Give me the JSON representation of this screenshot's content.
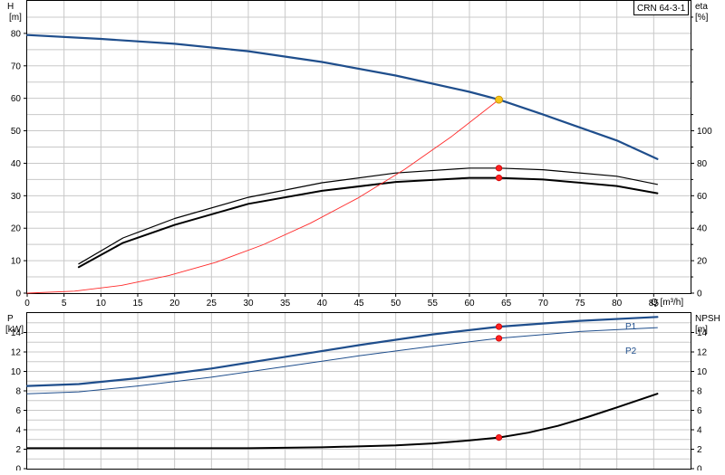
{
  "model_label": "CRN 64-3-1",
  "chart_data": [
    {
      "type": "line",
      "name_role": "head-efficiency",
      "xlabel": "Q [m³/h]",
      "xlim": [
        0,
        90
      ],
      "x_ticks": [
        0,
        5,
        10,
        15,
        20,
        25,
        30,
        35,
        40,
        45,
        50,
        55,
        60,
        65,
        70,
        75,
        80,
        85
      ],
      "y_left": {
        "label_top": "H",
        "label_unit": "[m]",
        "lim": [
          0,
          90
        ],
        "ticks": [
          0,
          10,
          20,
          30,
          40,
          50,
          60,
          70,
          80
        ]
      },
      "y_right": {
        "label_top": "eta",
        "label_unit": "[%]",
        "lim": [
          0,
          180
        ],
        "ticks": [
          0,
          20,
          40,
          60,
          80,
          100
        ]
      },
      "grid": true,
      "series": [
        {
          "role": "head",
          "axis": "left",
          "color": "#1f4e8c",
          "width": 2.2,
          "x": [
            0,
            10,
            20,
            30,
            40,
            50,
            60,
            64,
            70,
            80,
            85.5
          ],
          "y": [
            79.5,
            78.3,
            76.8,
            74.5,
            71.2,
            67.0,
            62.0,
            59.6,
            55.0,
            47.0,
            41.3
          ]
        },
        {
          "role": "eta-upper",
          "axis": "right",
          "color": "#000000",
          "width": 1.2,
          "x": [
            7,
            13,
            20,
            30,
            40,
            50,
            60,
            64,
            70,
            80,
            85.5
          ],
          "y": [
            18,
            34,
            46,
            59,
            68,
            74,
            77,
            77,
            76,
            72,
            67
          ]
        },
        {
          "role": "eta-lower",
          "axis": "right",
          "color": "#000000",
          "width": 2.0,
          "x": [
            7,
            13,
            20,
            30,
            40,
            50,
            60,
            64,
            70,
            80,
            85.5
          ],
          "y": [
            16,
            31,
            42,
            55,
            63,
            68.5,
            71,
            71,
            70,
            66,
            61.5
          ]
        },
        {
          "role": "system-curve",
          "axis": "left",
          "color": "#ff2a2a",
          "width": 0.9,
          "x": [
            0,
            6.4,
            12.8,
            19.2,
            25.6,
            32,
            38.4,
            44.8,
            51.2,
            57.6,
            64
          ],
          "y": [
            0,
            0.6,
            2.4,
            5.4,
            9.5,
            14.9,
            21.5,
            29.2,
            38.1,
            48.3,
            59.6
          ]
        }
      ],
      "markers": [
        {
          "axis": "left",
          "x": 64,
          "y": 59.6,
          "color": "#f5c518",
          "stroke": "#c88a00",
          "r": 4
        },
        {
          "axis": "right",
          "x": 64,
          "y": 77,
          "color": "#ff2020",
          "stroke": "#cc0000",
          "r": 3.2
        },
        {
          "axis": "right",
          "x": 64,
          "y": 71,
          "color": "#ff2020",
          "stroke": "#cc0000",
          "r": 3.2
        }
      ]
    },
    {
      "type": "line",
      "name_role": "power-npsh",
      "xlim": [
        0,
        90
      ],
      "y_left": {
        "label_top": "P",
        "label_unit": "[kW]",
        "lim": [
          0,
          16
        ],
        "ticks": [
          0,
          2,
          4,
          6,
          8,
          10,
          12,
          14
        ]
      },
      "y_right": {
        "label_top": "NPSH",
        "label_unit": "[m]",
        "lim": [
          0,
          16
        ],
        "ticks": [
          0,
          2,
          4,
          6,
          8,
          10,
          12,
          14
        ]
      },
      "grid": true,
      "series": [
        {
          "role": "p1",
          "label": "P1",
          "axis": "left",
          "color": "#1f4e8c",
          "width": 2.2,
          "x": [
            0,
            7,
            15,
            25,
            35,
            45,
            55,
            64,
            75,
            85.5
          ],
          "y": [
            8.5,
            8.7,
            9.3,
            10.3,
            11.5,
            12.7,
            13.8,
            14.6,
            15.2,
            15.6
          ]
        },
        {
          "role": "p2",
          "label": "P2",
          "axis": "left",
          "color": "#1f4e8c",
          "width": 1.0,
          "x": [
            0,
            7,
            15,
            25,
            35,
            45,
            55,
            64,
            75,
            85.5
          ],
          "y": [
            7.7,
            7.9,
            8.5,
            9.4,
            10.5,
            11.6,
            12.6,
            13.4,
            14.1,
            14.5
          ]
        },
        {
          "role": "npsh",
          "axis": "right",
          "color": "#000000",
          "width": 2.0,
          "x": [
            0,
            30,
            40,
            50,
            55,
            60,
            64,
            68,
            72,
            76,
            80,
            85.5
          ],
          "y": [
            2.1,
            2.1,
            2.2,
            2.4,
            2.6,
            2.9,
            3.2,
            3.7,
            4.4,
            5.3,
            6.3,
            7.7
          ]
        }
      ],
      "markers": [
        {
          "axis": "left",
          "x": 64,
          "y": 14.6,
          "color": "#ff2020",
          "stroke": "#cc0000",
          "r": 3.2
        },
        {
          "axis": "left",
          "x": 64,
          "y": 13.4,
          "color": "#ff2020",
          "stroke": "#cc0000",
          "r": 3.2
        },
        {
          "axis": "right",
          "x": 64,
          "y": 3.2,
          "color": "#ff2020",
          "stroke": "#cc0000",
          "r": 3.2
        }
      ]
    }
  ]
}
